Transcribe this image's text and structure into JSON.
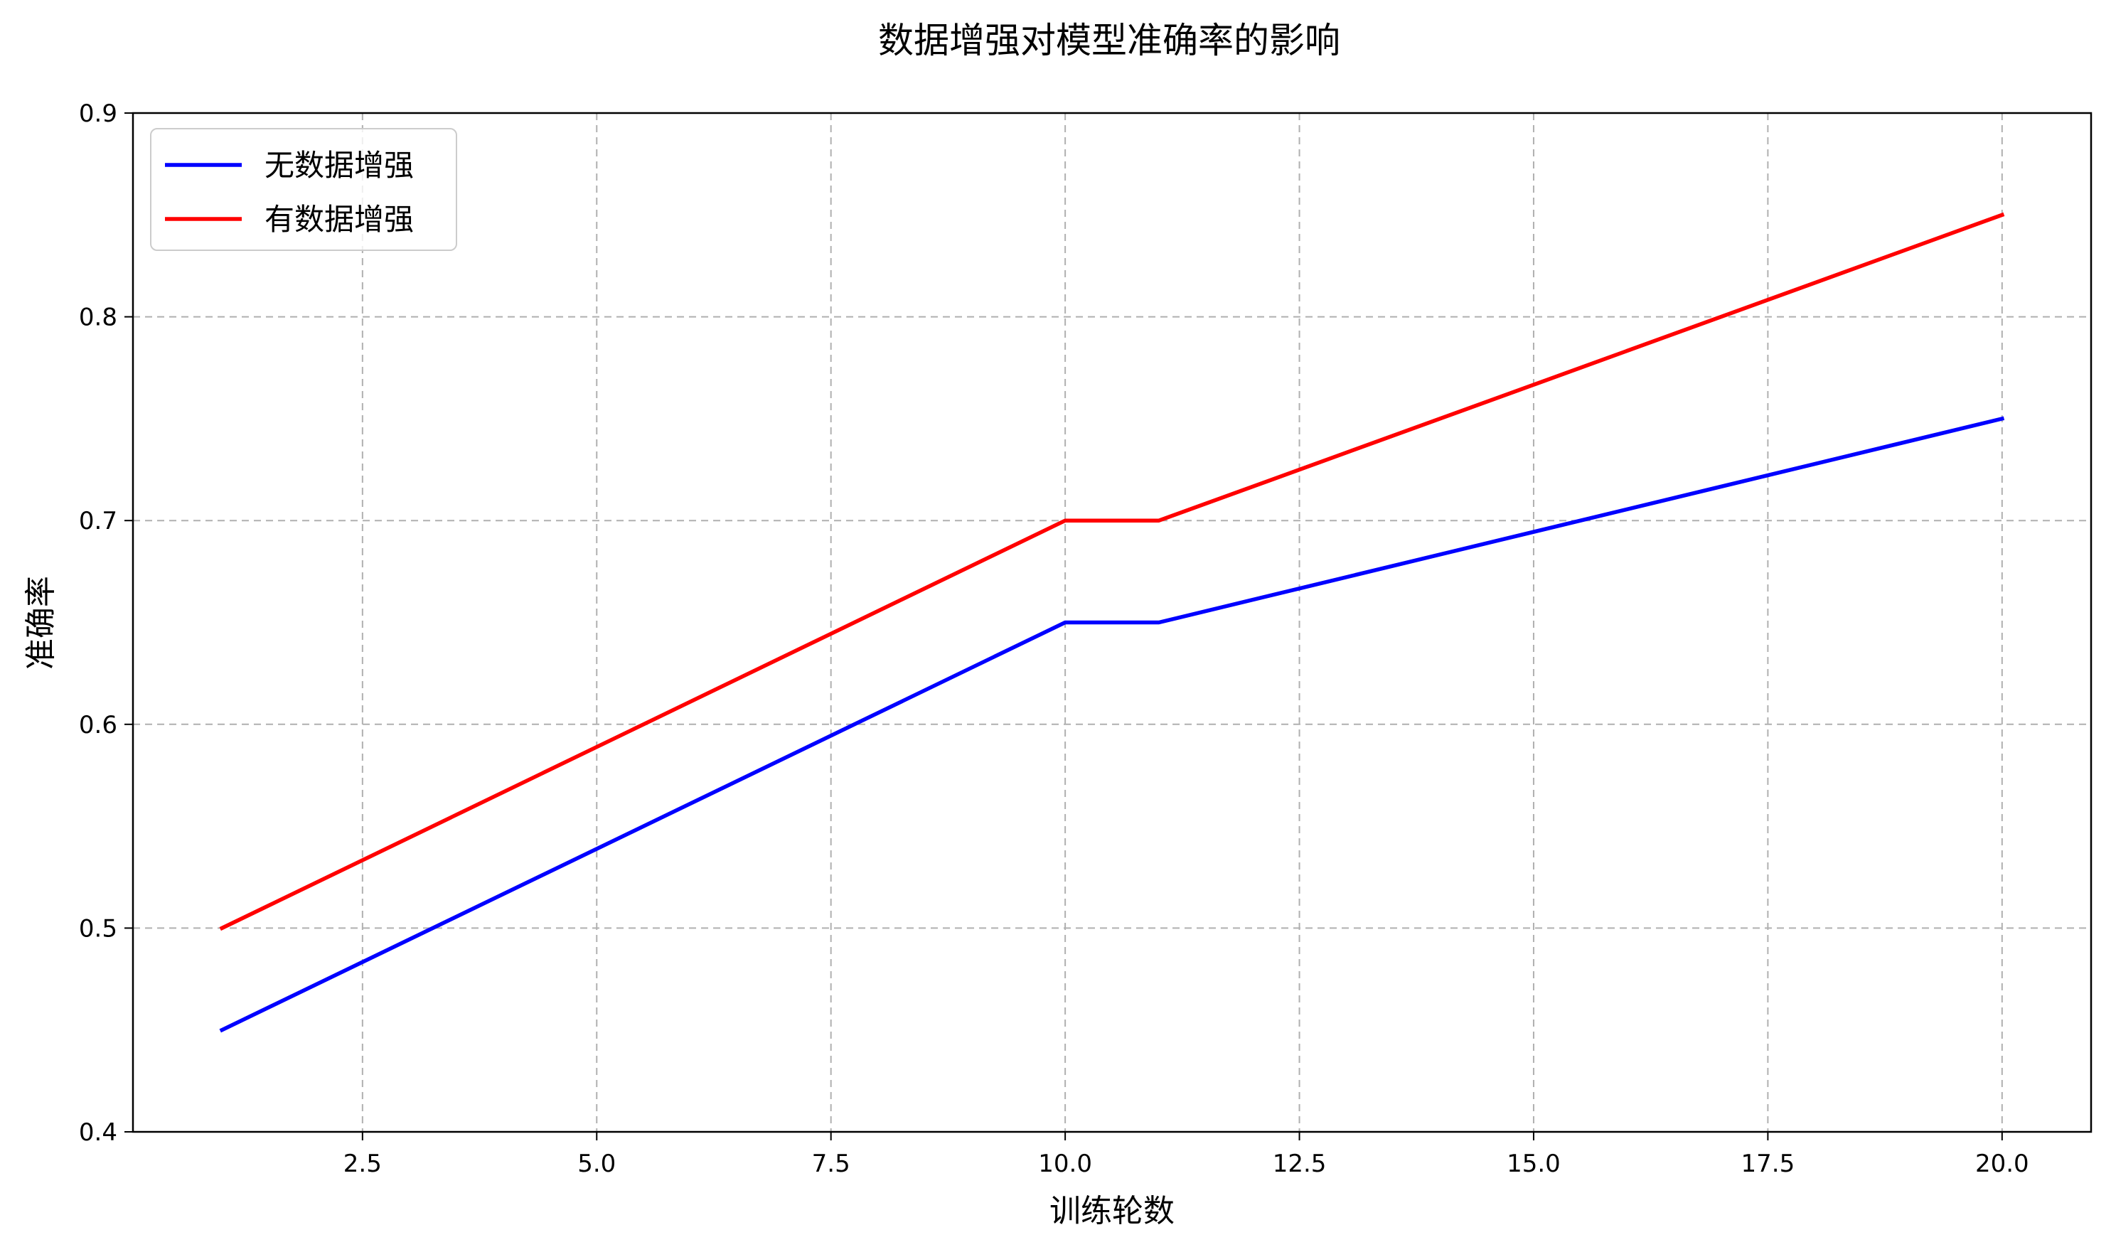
{
  "chart_data": {
    "type": "line",
    "title": "数据增强对模型准确率的影响",
    "xlabel": "训练轮数",
    "ylabel": "准确率",
    "xlim": [
      0.05,
      20.95
    ],
    "ylim": [
      0.4,
      0.9
    ],
    "xticks": [
      2.5,
      5.0,
      7.5,
      10.0,
      12.5,
      15.0,
      17.5,
      20.0
    ],
    "xtick_labels": [
      "2.5",
      "5.0",
      "7.5",
      "10.0",
      "12.5",
      "15.0",
      "17.5",
      "20.0"
    ],
    "yticks": [
      0.4,
      0.5,
      0.6,
      0.7,
      0.8,
      0.9
    ],
    "ytick_labels": [
      "0.4",
      "0.5",
      "0.6",
      "0.7",
      "0.8",
      "0.9"
    ],
    "grid": true,
    "legend_position": "top-left",
    "series": [
      {
        "name": "无数据增强",
        "color": "#0000ff",
        "x": [
          1,
          10,
          11,
          20
        ],
        "y": [
          0.45,
          0.65,
          0.65,
          0.75
        ]
      },
      {
        "name": "有数据增强",
        "color": "#ff0000",
        "x": [
          1,
          10,
          11,
          20
        ],
        "y": [
          0.5,
          0.7,
          0.7,
          0.85
        ]
      }
    ]
  }
}
